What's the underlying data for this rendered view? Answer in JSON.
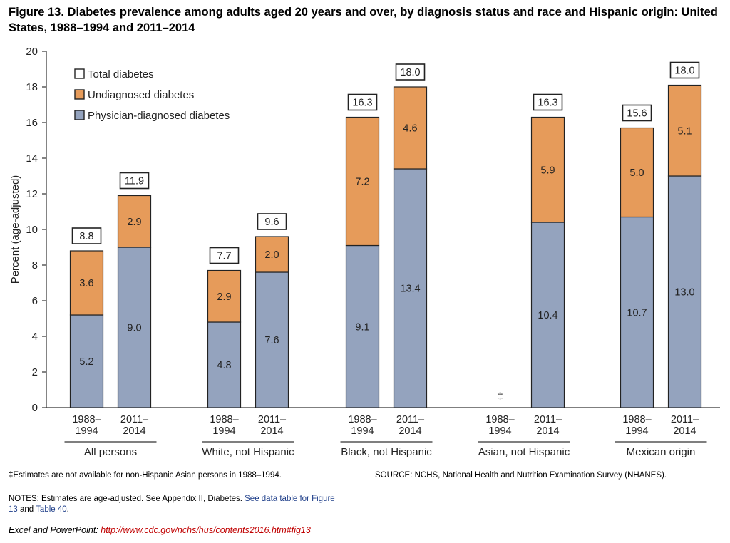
{
  "figure": {
    "title": "Figure 13. Diabetes prevalence among adults aged 20 years and over, by diagnosis status and race and Hispanic origin: United States, 1988–1994 and 2011–2014"
  },
  "chart_data": {
    "type": "bar",
    "stacked": true,
    "ylabel": "Percent (age-adjusted)",
    "ylim": [
      0,
      20
    ],
    "yticks": [
      0,
      2,
      4,
      6,
      8,
      10,
      12,
      14,
      16,
      18,
      20
    ],
    "grid": false,
    "legend_position": "top-left",
    "colors": {
      "physician": "#94a3be",
      "undiagnosed": "#e69b5a",
      "total": "#ffffff",
      "outline": "#222222"
    },
    "legend": [
      {
        "key": "total",
        "label": "Total diabetes"
      },
      {
        "key": "undiagnosed",
        "label": "Undiagnosed diabetes"
      },
      {
        "key": "physician",
        "label": "Physician-diagnosed diabetes"
      }
    ],
    "groups": [
      {
        "name": "All persons",
        "bars": [
          {
            "period": "1988–1994",
            "physician": 5.2,
            "undiagnosed": 3.6,
            "total": 8.8
          },
          {
            "period": "2011–2014",
            "physician": 9.0,
            "undiagnosed": 2.9,
            "total": 11.9
          }
        ]
      },
      {
        "name": "White, not Hispanic",
        "bars": [
          {
            "period": "1988–1994",
            "physician": 4.8,
            "undiagnosed": 2.9,
            "total": 7.7
          },
          {
            "period": "2011–2014",
            "physician": 7.6,
            "undiagnosed": 2.0,
            "total": 9.6
          }
        ]
      },
      {
        "name": "Black, not Hispanic",
        "bars": [
          {
            "period": "1988–1994",
            "physician": 9.1,
            "undiagnosed": 7.2,
            "total": 16.3
          },
          {
            "period": "2011–2014",
            "physician": 13.4,
            "undiagnosed": 4.6,
            "total": 18.0
          }
        ]
      },
      {
        "name": "Asian, not Hispanic",
        "bars": [
          {
            "period": "1988–1994",
            "na_mark": "‡"
          },
          {
            "period": "2011–2014",
            "physician": 10.4,
            "undiagnosed": 5.9,
            "total": 16.3
          }
        ]
      },
      {
        "name": "Mexican origin",
        "bars": [
          {
            "period": "1988–1994",
            "physician": 10.7,
            "undiagnosed": 5.0,
            "total": 15.6
          },
          {
            "period": "2011–2014",
            "physician": 13.0,
            "undiagnosed": 5.1,
            "total": 18.0
          }
        ]
      }
    ]
  },
  "footnotes": {
    "na_note": "‡Estimates are not available for non-Hispanic Asian persons in 1988–1994.",
    "source": "SOURCE: NCHS, National Health and Nutrition Examination Survey (NHANES).",
    "notes_prefix": "NOTES: Estimates are age-adjusted. See Appendix II, Diabetes. ",
    "notes_link1": "See data table for Figure 13",
    "notes_mid": " and ",
    "notes_link2": "Table 40",
    "notes_end": ".",
    "excel_prefix": "Excel and PowerPoint: ",
    "excel_url": "http://www.cdc.gov/nchs/hus/contents2016.htm#fig13"
  }
}
